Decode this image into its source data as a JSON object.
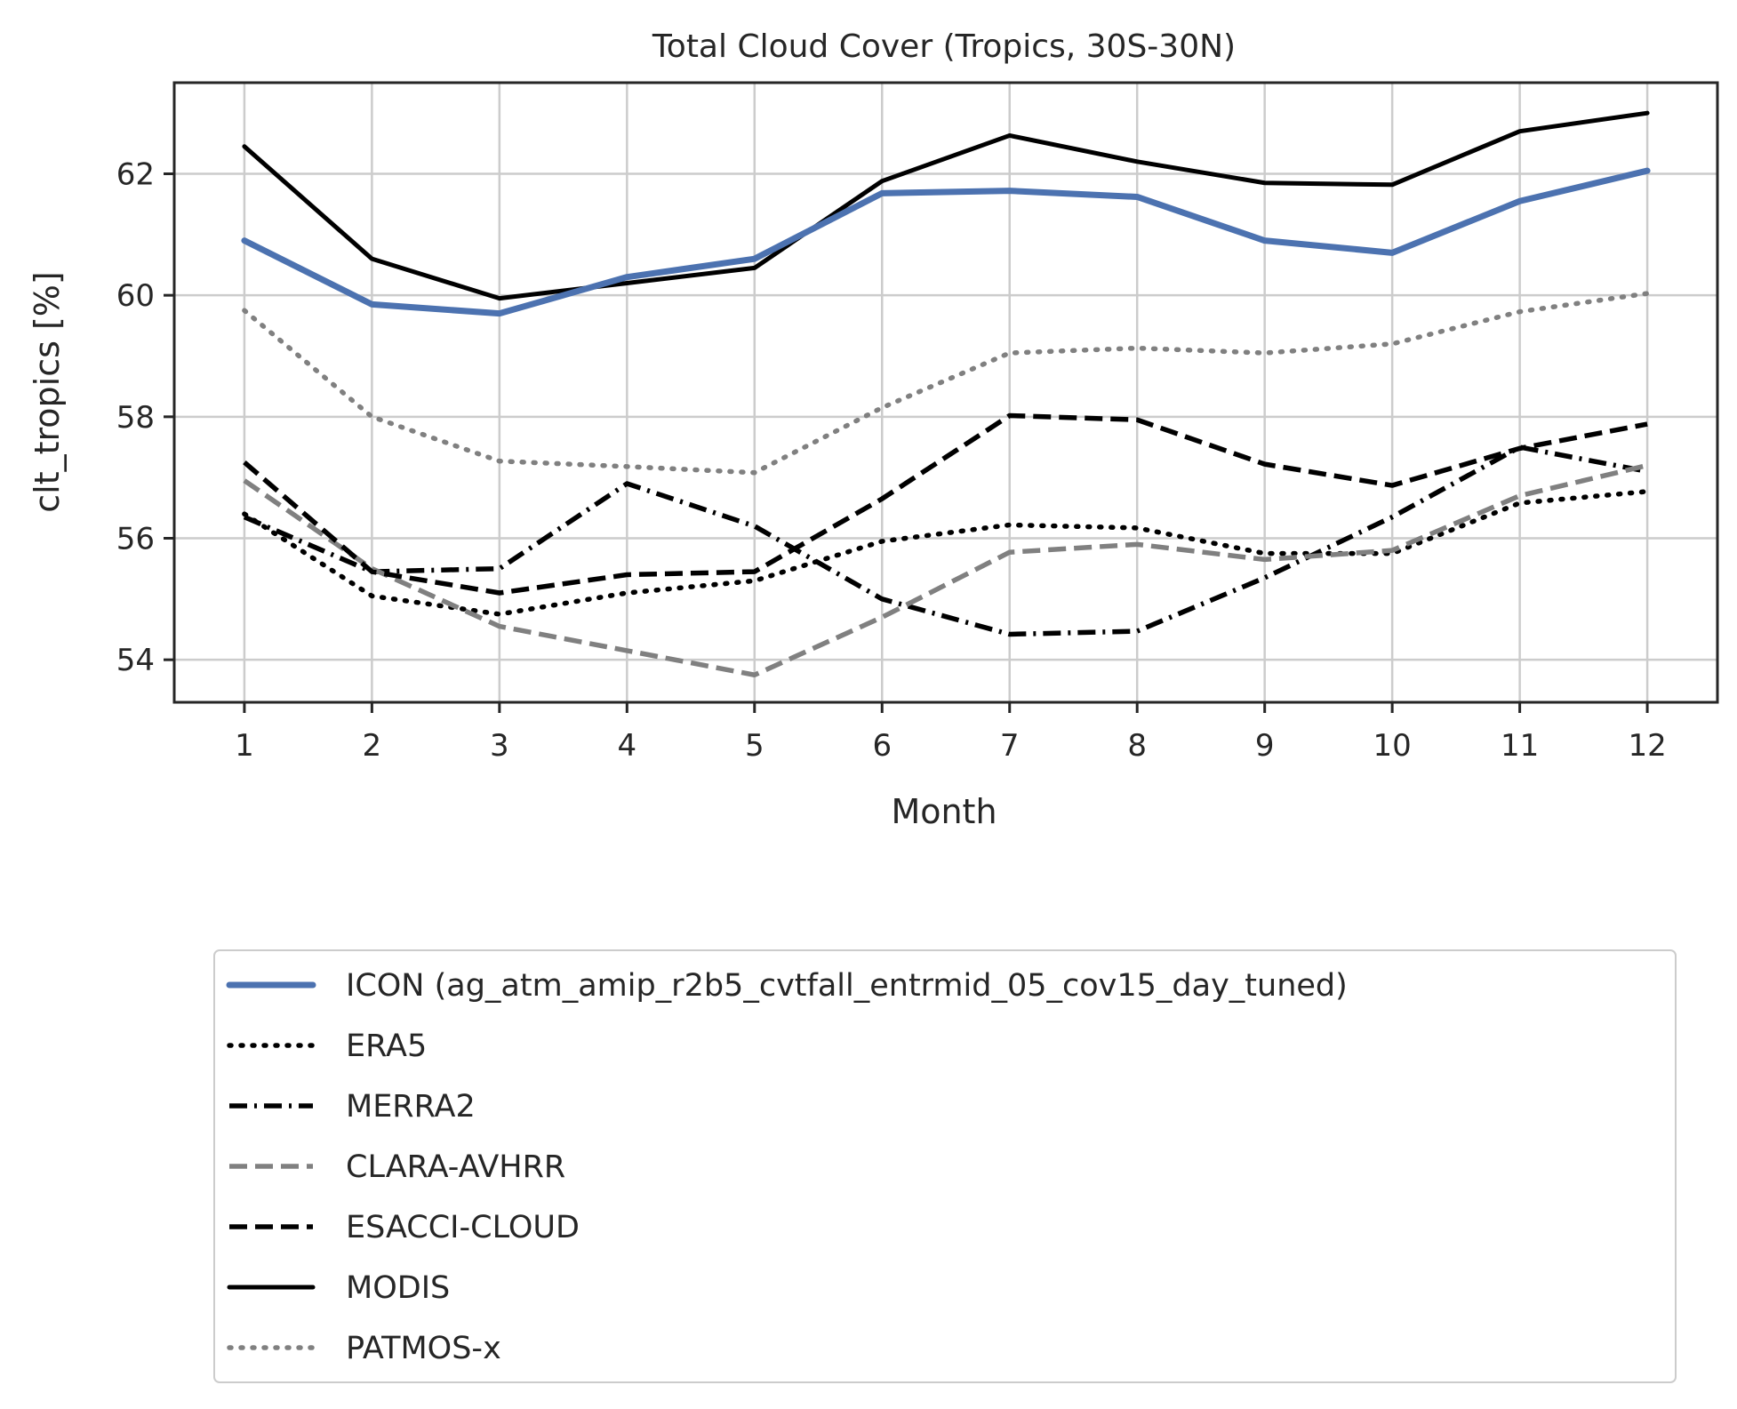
{
  "chart_data": {
    "type": "line",
    "title": "Total Cloud Cover (Tropics, 30S-30N)",
    "xlabel": "Month",
    "ylabel": "clt_tropics [%]",
    "x": [
      1,
      2,
      3,
      4,
      5,
      6,
      7,
      8,
      9,
      10,
      11,
      12
    ],
    "xlim": [
      0.45,
      12.55
    ],
    "ylim": [
      53.3,
      63.5
    ],
    "yticks": [
      54,
      56,
      58,
      60,
      62
    ],
    "grid": true,
    "legend_position": "below-plot",
    "series": [
      {
        "name": "ICON (ag_atm_amip_r2b5_cvtfall_entrmid_05_cov15_day_tuned)",
        "color": "#4c72b0",
        "style": "solid-thick",
        "values": [
          60.9,
          59.85,
          59.7,
          60.3,
          60.6,
          61.68,
          61.72,
          61.62,
          60.9,
          60.7,
          61.55,
          62.05
        ]
      },
      {
        "name": "ERA5",
        "color": "#000000",
        "style": "dotted",
        "values": [
          56.4,
          55.05,
          54.75,
          55.1,
          55.3,
          55.95,
          56.22,
          56.17,
          55.75,
          55.75,
          56.58,
          56.77
        ]
      },
      {
        "name": "MERRA2",
        "color": "#000000",
        "style": "dashdot",
        "values": [
          56.35,
          55.45,
          55.5,
          56.9,
          56.2,
          55.0,
          54.42,
          54.47,
          55.35,
          56.35,
          57.5,
          57.1
        ]
      },
      {
        "name": "CLARA-AVHRR",
        "color": "#808080",
        "style": "dashed",
        "values": [
          56.95,
          55.5,
          54.55,
          54.15,
          53.75,
          54.7,
          55.77,
          55.9,
          55.65,
          55.8,
          56.7,
          57.2
        ]
      },
      {
        "name": "ESACCI-CLOUD",
        "color": "#000000",
        "style": "dashed",
        "values": [
          57.25,
          55.45,
          55.1,
          55.4,
          55.45,
          56.65,
          58.02,
          57.95,
          57.22,
          56.87,
          57.48,
          57.88
        ]
      },
      {
        "name": "MODIS",
        "color": "#000000",
        "style": "solid",
        "values": [
          62.45,
          60.6,
          59.95,
          60.2,
          60.45,
          61.88,
          62.63,
          62.2,
          61.85,
          61.82,
          62.7,
          63.0
        ]
      },
      {
        "name": "PATMOS-x",
        "color": "#808080",
        "style": "dotted",
        "values": [
          59.75,
          58.0,
          57.27,
          57.18,
          57.08,
          58.15,
          59.05,
          59.13,
          59.05,
          59.2,
          59.73,
          60.03
        ]
      }
    ]
  }
}
